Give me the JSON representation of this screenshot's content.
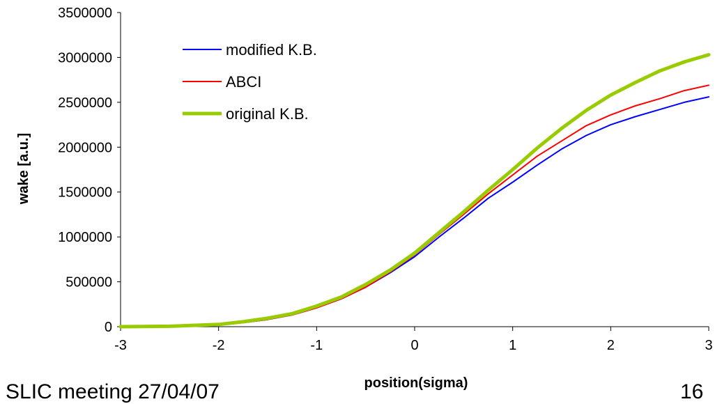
{
  "chart_data": {
    "type": "line",
    "xlabel": "position(sigma)",
    "ylabel": "wake [a.u.]",
    "xlim": [
      -3,
      3
    ],
    "ylim": [
      0,
      3500000
    ],
    "xticks": [
      "-3",
      "-2",
      "-1",
      "0",
      "1",
      "2",
      "3"
    ],
    "yticks": [
      "0",
      "500000",
      "1000000",
      "1500000",
      "2000000",
      "2500000",
      "3000000",
      "3500000"
    ],
    "grid": false,
    "legend_position": "top-left",
    "series": [
      {
        "name": "modified K.B.",
        "color": "#0000ff",
        "width": 2,
        "x": [
          -3,
          -2.5,
          -2,
          -1.75,
          -1.5,
          -1.25,
          -1,
          -0.75,
          -0.5,
          -0.25,
          0,
          0.25,
          0.5,
          0.75,
          1,
          1.25,
          1.5,
          1.75,
          2,
          2.25,
          2.5,
          2.75,
          3
        ],
        "y": [
          0,
          3000,
          20000,
          45000,
          80000,
          130000,
          210000,
          310000,
          440000,
          600000,
          780000,
          1000000,
          1210000,
          1430000,
          1610000,
          1800000,
          1980000,
          2130000,
          2250000,
          2340000,
          2420000,
          2500000,
          2560000
        ]
      },
      {
        "name": "ABCI",
        "color": "#ff0000",
        "width": 2,
        "x": [
          -3,
          -2.5,
          -2,
          -1.75,
          -1.5,
          -1.25,
          -1,
          -0.75,
          -0.5,
          -0.25,
          0,
          0.25,
          0.5,
          0.75,
          1,
          1.25,
          1.5,
          1.75,
          2,
          2.25,
          2.5,
          2.75,
          3
        ],
        "y": [
          0,
          3000,
          20000,
          45000,
          80000,
          130000,
          210000,
          310000,
          440000,
          610000,
          800000,
          1030000,
          1250000,
          1480000,
          1690000,
          1900000,
          2070000,
          2240000,
          2360000,
          2460000,
          2540000,
          2630000,
          2690000
        ]
      },
      {
        "name": "original K.B.",
        "color": "#99cc00",
        "width": 5,
        "x": [
          -3,
          -2.5,
          -2,
          -1.75,
          -1.5,
          -1.25,
          -1,
          -0.75,
          -0.5,
          -0.25,
          0,
          0.25,
          0.5,
          0.75,
          1,
          1.25,
          1.5,
          1.75,
          2,
          2.25,
          2.5,
          2.75,
          3
        ],
        "y": [
          0,
          5000,
          25000,
          55000,
          95000,
          145000,
          230000,
          330000,
          470000,
          630000,
          820000,
          1050000,
          1280000,
          1520000,
          1750000,
          1990000,
          2210000,
          2410000,
          2580000,
          2720000,
          2850000,
          2950000,
          3030000
        ]
      }
    ]
  },
  "footer": {
    "left_text": "SLIC meeting 27/04/07",
    "right_text": "16"
  }
}
